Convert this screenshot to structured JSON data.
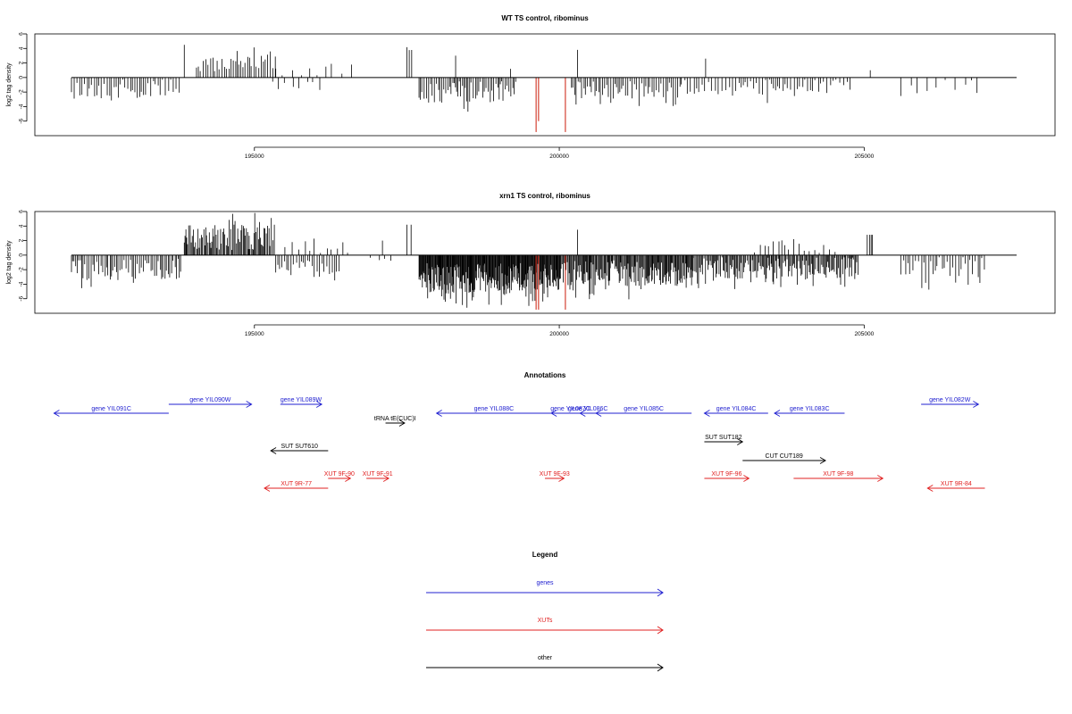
{
  "chart_data": [
    {
      "type": "bar",
      "title": "WT TS control, ribominus",
      "ylabel": "log2 tag density",
      "xlim": [
        192000,
        207500
      ],
      "ylim": [
        -8,
        6
      ],
      "x_ticks": [
        195000,
        200000,
        205000
      ],
      "y_ticks": [
        6,
        4,
        2,
        0,
        -2,
        -4,
        -6
      ],
      "x_tick_labels": [
        "195000",
        "200000",
        "205000"
      ],
      "y_tick_labels": [
        "6",
        "4",
        "2",
        "0",
        "-2",
        "-4",
        "-6"
      ],
      "segments": [
        {
          "x": [
            192000,
            193800
          ],
          "sign": -1,
          "base": 1.6,
          "amp": 2.2,
          "step": 40
        },
        {
          "x": [
            193850,
            193900
          ],
          "sign": 1,
          "base": 4.5,
          "amp": 0,
          "step": 60
        },
        {
          "x": [
            194050,
            195350
          ],
          "sign": 1,
          "base": 1.8,
          "amp": 2.0,
          "step": 35
        },
        {
          "x": [
            195300,
            196100
          ],
          "sign": -1,
          "base": 1.0,
          "amp": 1.2,
          "step": 120
        },
        {
          "x": [
            195350,
            196600
          ],
          "sign": 1,
          "base": 1.0,
          "amp": 1.5,
          "step": 140
        },
        {
          "x": [
            197500,
            197600
          ],
          "sign": 1,
          "base": 3.5,
          "amp": 1.2,
          "step": 40
        },
        {
          "x": [
            197700,
            199300
          ],
          "sign": -1,
          "base": 2.0,
          "amp": 2.5,
          "step": 28
        },
        {
          "x": [
            198300,
            198400
          ],
          "sign": 1,
          "base": 3.0,
          "amp": 0,
          "step": 200
        },
        {
          "x": [
            199200,
            199300
          ],
          "sign": 1,
          "base": 1.2,
          "amp": 0,
          "step": 200
        },
        {
          "x": [
            200300,
            200400
          ],
          "sign": 1,
          "base": 3.8,
          "amp": 0,
          "step": 200
        },
        {
          "x": [
            200200,
            202000
          ],
          "sign": -1,
          "base": 1.7,
          "amp": 2.0,
          "step": 32
        },
        {
          "x": [
            202000,
            204800
          ],
          "sign": -1,
          "base": 1.3,
          "amp": 2.0,
          "step": 48
        },
        {
          "x": [
            202400,
            202500
          ],
          "sign": 1,
          "base": 2.6,
          "amp": 0,
          "step": 200
        },
        {
          "x": [
            205100,
            205200
          ],
          "sign": 1,
          "base": 1.0,
          "amp": 0,
          "step": 200
        },
        {
          "x": [
            205600,
            207000
          ],
          "sign": -1,
          "base": 1.5,
          "amp": 2.0,
          "step": 130
        }
      ],
      "highlights": [
        {
          "x": 199620,
          "y": -7.5,
          "color": "#d03020"
        },
        {
          "x": 199660,
          "y": -6.0,
          "color": "#d03020"
        },
        {
          "x": 200100,
          "y": -7.5,
          "color": "#d03020"
        }
      ]
    },
    {
      "type": "bar",
      "title": "xrn1 TS control, ribominus",
      "ylabel": "log2 tag density",
      "xlim": [
        192000,
        207500
      ],
      "ylim": [
        -8,
        6
      ],
      "x_ticks": [
        195000,
        200000,
        205000
      ],
      "y_ticks": [
        6,
        4,
        2,
        0,
        -2,
        -4,
        -6
      ],
      "x_tick_labels": [
        "195000",
        "200000",
        "205000"
      ],
      "y_tick_labels": [
        "6",
        "4",
        "2",
        "0",
        "-2",
        "-4",
        "-6"
      ],
      "segments": [
        {
          "x": [
            192000,
            193800
          ],
          "sign": -1,
          "base": 2.0,
          "amp": 2.5,
          "step": 30
        },
        {
          "x": [
            193850,
            195350
          ],
          "sign": 1,
          "base": 2.5,
          "amp": 3.0,
          "step": 18
        },
        {
          "x": [
            195350,
            196400
          ],
          "sign": -1,
          "base": 1.8,
          "amp": 2.0,
          "step": 40
        },
        {
          "x": [
            195500,
            196600
          ],
          "sign": 1,
          "base": 1.2,
          "amp": 1.8,
          "step": 90
        },
        {
          "x": [
            196900,
            197300
          ],
          "sign": -1,
          "base": 0.5,
          "amp": 0.5,
          "step": 120
        },
        {
          "x": [
            197100,
            197200
          ],
          "sign": 1,
          "base": 2.0,
          "amp": 0,
          "step": 200
        },
        {
          "x": [
            197500,
            197600
          ],
          "sign": 1,
          "base": 4.0,
          "amp": 0.5,
          "step": 50
        },
        {
          "x": [
            197700,
            200000
          ],
          "sign": -1,
          "base": 3.2,
          "amp": 3.5,
          "step": 10
        },
        {
          "x": [
            200000,
            202200
          ],
          "sign": -1,
          "base": 2.5,
          "amp": 3.0,
          "step": 14
        },
        {
          "x": [
            200300,
            200400
          ],
          "sign": 1,
          "base": 3.5,
          "amp": 0,
          "step": 200
        },
        {
          "x": [
            202200,
            204900
          ],
          "sign": -1,
          "base": 1.8,
          "amp": 2.5,
          "step": 18
        },
        {
          "x": [
            203200,
            204600
          ],
          "sign": 1,
          "base": 1.2,
          "amp": 2.0,
          "step": 70
        },
        {
          "x": [
            205050,
            205150
          ],
          "sign": 1,
          "base": 2.8,
          "amp": 0,
          "step": 30
        },
        {
          "x": [
            205600,
            207000
          ],
          "sign": -1,
          "base": 2.2,
          "amp": 3.5,
          "step": 40
        }
      ],
      "highlights": [
        {
          "x": 199620,
          "y": -7.5,
          "color": "#d03020"
        },
        {
          "x": 199660,
          "y": -7.5,
          "color": "#d03020"
        },
        {
          "x": 200100,
          "y": -7.5,
          "color": "#d03020"
        }
      ]
    }
  ],
  "annotations": {
    "title": "Annotations",
    "items": [
      {
        "label": "gene YIL091C",
        "start": 192000,
        "end": 193800,
        "dir": -1,
        "row": 1,
        "color": "#2020d0"
      },
      {
        "label": "gene YIL090W",
        "start": 193800,
        "end": 195100,
        "dir": 1,
        "row": 0,
        "color": "#2020d0"
      },
      {
        "label": "gene YIL089W",
        "start": 195550,
        "end": 196200,
        "dir": 1,
        "row": 0,
        "color": "#2020d0"
      },
      {
        "label": "tRNA tE(CUC)I",
        "start": 197200,
        "end": 197500,
        "dir": 1,
        "row": 2,
        "color": "#000000"
      },
      {
        "label": "gene YIL088C",
        "start": 198000,
        "end": 199800,
        "dir": -1,
        "row": 1,
        "color": "#2020d0"
      },
      {
        "label": "gene YIL087C",
        "start": 199800,
        "end": 200400,
        "dir": -1,
        "row": 1,
        "color": "#2020d0"
      },
      {
        "label": "gene YIL086C",
        "start": 200250,
        "end": 200500,
        "dir": -1,
        "row": 1,
        "color": "#2020d0"
      },
      {
        "label": "gene YIL085C",
        "start": 200500,
        "end": 202000,
        "dir": -1,
        "row": 1,
        "color": "#2020d0"
      },
      {
        "label": "gene YIL084C",
        "start": 202200,
        "end": 203200,
        "dir": -1,
        "row": 1,
        "color": "#2020d0"
      },
      {
        "label": "gene YIL083C",
        "start": 203300,
        "end": 204400,
        "dir": -1,
        "row": 1,
        "color": "#2020d0"
      },
      {
        "label": "gene YIL082W",
        "start": 205600,
        "end": 206500,
        "dir": 1,
        "row": 0,
        "color": "#2020d0"
      },
      {
        "label": "SUT SUT610",
        "start": 195400,
        "end": 196300,
        "dir": -1,
        "row": 3,
        "color": "#000000"
      },
      {
        "label": "SUT SUT182",
        "start": 202200,
        "end": 202800,
        "dir": 1,
        "row": 4,
        "color": "#000000"
      },
      {
        "label": "CUT CUT189",
        "start": 202800,
        "end": 204100,
        "dir": 1,
        "row": 5,
        "color": "#000000"
      },
      {
        "label": "XUT 9R-77",
        "start": 195300,
        "end": 196300,
        "dir": -1,
        "row": 7,
        "color": "#e02020"
      },
      {
        "label": "XUT 9F-90",
        "start": 196300,
        "end": 196650,
        "dir": 1,
        "row": 6,
        "color": "#e02020"
      },
      {
        "label": "XUT 9F-91",
        "start": 196900,
        "end": 197250,
        "dir": 1,
        "row": 6,
        "color": "#e02020"
      },
      {
        "label": "XUT 9F-93",
        "start": 199700,
        "end": 200000,
        "dir": 1,
        "row": 6,
        "color": "#e02020"
      },
      {
        "label": "XUT 9F-96",
        "start": 202200,
        "end": 202900,
        "dir": 1,
        "row": 6,
        "color": "#e02020"
      },
      {
        "label": "XUT 9F-98",
        "start": 203600,
        "end": 205000,
        "dir": 1,
        "row": 6,
        "color": "#e02020"
      },
      {
        "label": "XUT 9R-84",
        "start": 205700,
        "end": 206600,
        "dir": -1,
        "row": 7,
        "color": "#e02020"
      }
    ]
  },
  "legend": {
    "title": "Legend",
    "items": [
      {
        "label": "genes",
        "color": "#2020d0"
      },
      {
        "label": "XUTs",
        "color": "#e02020"
      },
      {
        "label": "other",
        "color": "#000000"
      }
    ]
  }
}
